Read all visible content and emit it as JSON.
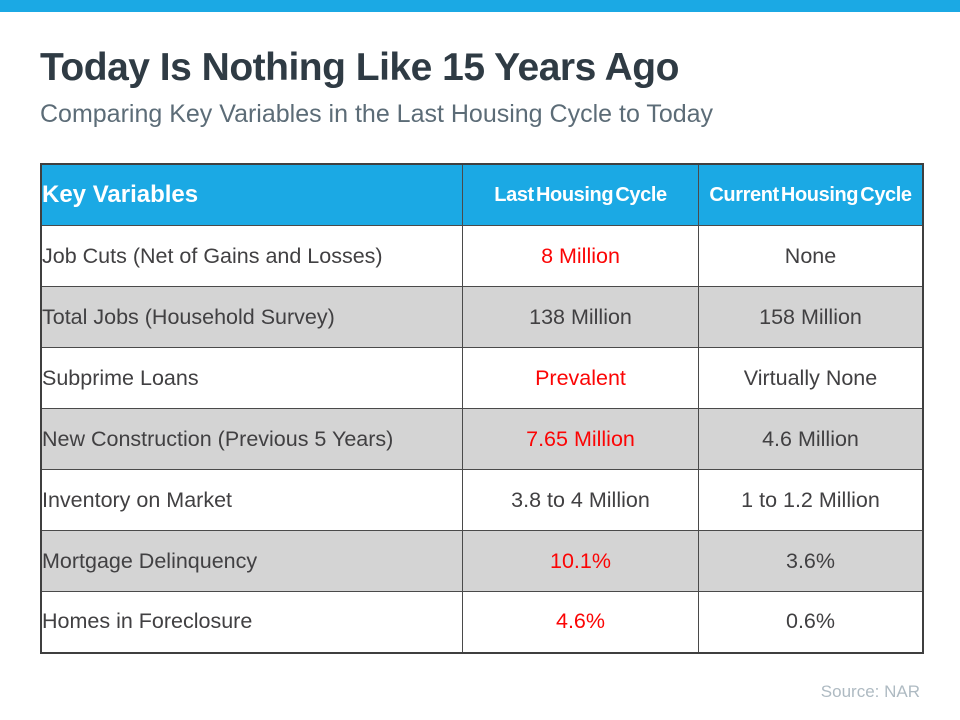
{
  "page": {
    "title": "Today Is Nothing Like 15 Years Ago",
    "subtitle": "Comparing Key Variables in the Last Housing Cycle to Today",
    "source": "Source: NAR"
  },
  "colors": {
    "accent_blue": "#1BA9E4",
    "highlight_red": "#FB0505",
    "alt_row_gray": "#D4D4D4",
    "title_dark": "#2F3B44",
    "subtitle_gray": "#5C6C77",
    "source_gray": "#AEBAC2",
    "cell_text": "#414042",
    "border_dark": "#4A4A4A"
  },
  "chart_data": {
    "type": "table",
    "title": "Today Is Nothing Like 15 Years Ago",
    "subtitle": "Comparing Key Variables in the Last Housing Cycle to Today",
    "source": "Source: NAR",
    "columns": [
      "Key Variables",
      "Last Housing Cycle",
      "Current Housing Cycle"
    ],
    "rows": [
      {
        "label": "Job Cuts (Net of Gains and Losses)",
        "last": "8 Million",
        "current": "None",
        "last_red": true,
        "current_red": false
      },
      {
        "label": "Total Jobs (Household Survey)",
        "last": "138 Million",
        "current": "158 Million",
        "last_red": false,
        "current_red": false
      },
      {
        "label": "Subprime Loans",
        "last": "Prevalent",
        "current": "Virtually None",
        "last_red": true,
        "current_red": false
      },
      {
        "label": "New Construction (Previous 5 Years)",
        "last": "7.65 Million",
        "current": "4.6 Million",
        "last_red": true,
        "current_red": false
      },
      {
        "label": "Inventory on Market",
        "last": "3.8 to 4 Million",
        "current": "1 to 1.2 Million",
        "last_red": false,
        "current_red": false
      },
      {
        "label": "Mortgage Delinquency",
        "last": "10.1%",
        "current": "3.6%",
        "last_red": true,
        "current_red": false
      },
      {
        "label": "Homes in Foreclosure",
        "last": "4.6%",
        "current": "0.6%",
        "last_red": true,
        "current_red": false
      }
    ]
  }
}
